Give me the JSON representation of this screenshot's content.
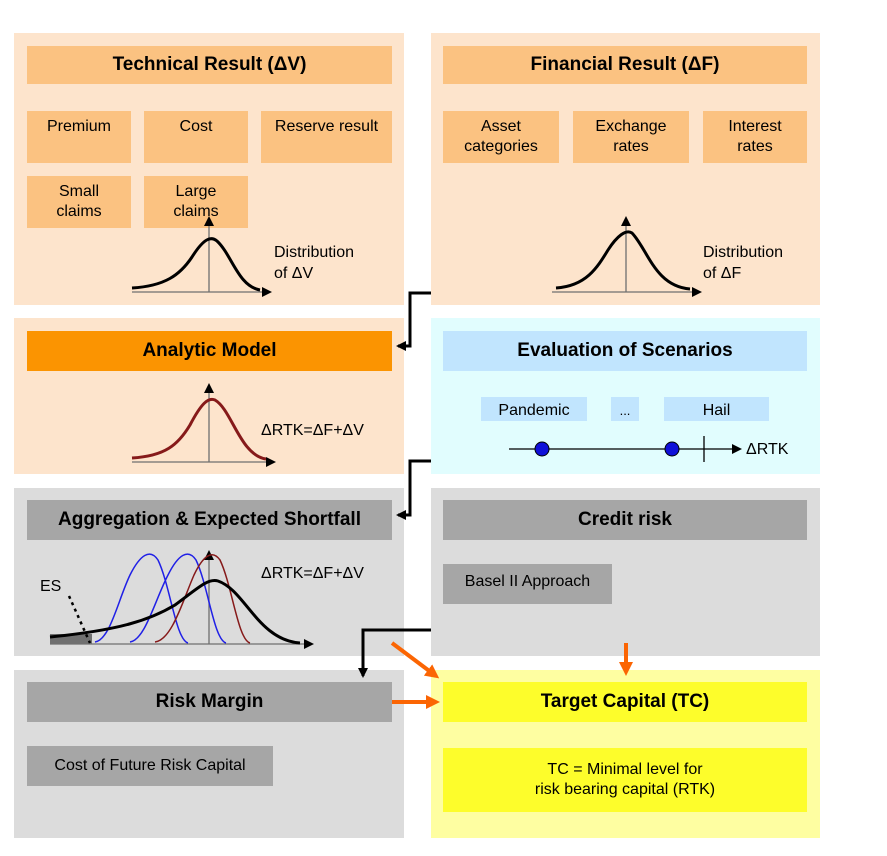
{
  "technical": {
    "title": "Technical Result (ΔV)",
    "items": [
      "Premium",
      "Cost",
      "Reserve result",
      "Small\nclaims",
      "Large\nclaims"
    ],
    "dist_label": "Distribution\nof ΔV"
  },
  "financial": {
    "title": "Financial Result (ΔF)",
    "items": [
      "Asset\ncategories",
      "Exchange\nrates",
      "Interest\nrates"
    ],
    "dist_label": "Distribution\nof ΔF"
  },
  "analytic": {
    "title": "Analytic Model",
    "formula": "ΔRTK=ΔF+ΔV"
  },
  "scenarios": {
    "title": "Evaluation of Scenarios",
    "items": [
      "Pandemic",
      "...",
      "Hail"
    ],
    "axis_label": "ΔRTK"
  },
  "aggregation": {
    "title": "Aggregation & Expected Shortfall",
    "formula": "ΔRTK=ΔF+ΔV",
    "es_label": "ES"
  },
  "credit": {
    "title": "Credit risk",
    "item": "Basel II Approach"
  },
  "risk_margin": {
    "title": "Risk Margin",
    "item": "Cost of Future Risk Capital"
  },
  "target": {
    "title": "Target Capital (TC)",
    "description": "TC = Minimal level for\nrisk bearing capital (RTK)"
  },
  "colors": {
    "peach_bg": "#fde4cc",
    "peach_box": "#fbc281",
    "orange_header": "#fb9401",
    "light_cyan_bg": "#e1fdfe",
    "light_blue_box": "#c1e5fe",
    "grey_bg": "#dcdcdc",
    "grey_box": "#a6a6a6",
    "yellow_bg": "#fefea1",
    "yellow_box": "#fdfd2b",
    "arrow_orange": "#fb6503",
    "curve_dark_red": "#861a1a",
    "curve_blue": "#2020e6",
    "dot_blue": "#1010d8"
  }
}
